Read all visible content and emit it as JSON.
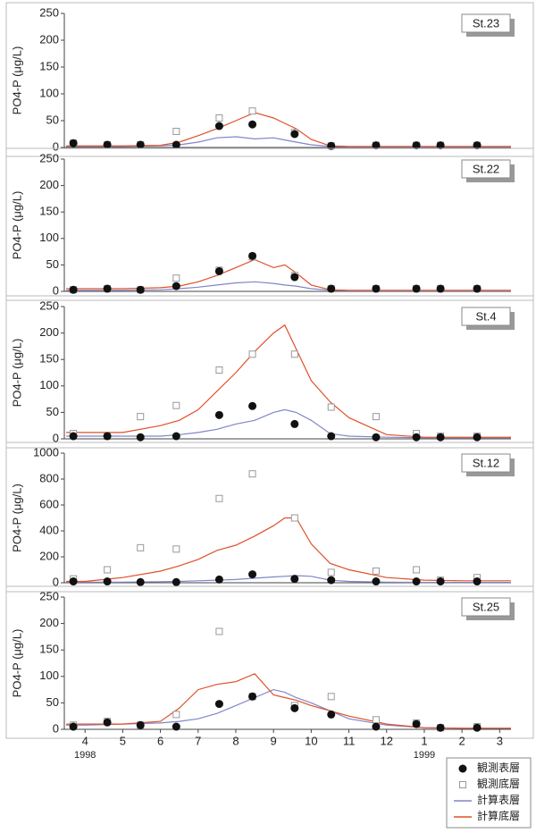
{
  "legend": [
    {
      "name": "観測表層",
      "color": "#111111",
      "marker": "circle"
    },
    {
      "name": "観測底層",
      "color": "#999999",
      "marker": "square"
    },
    {
      "name": "計算表層",
      "color": "#7f86c8",
      "marker": "line"
    },
    {
      "name": "計算底層",
      "color": "#e0502a",
      "marker": "line"
    }
  ],
  "chart_data": [
    {
      "type": "line",
      "label": "St.23",
      "ylabel": "PO4-P (μg/L)",
      "xlim": [
        3.45,
        15.3
      ],
      "ylim": [
        0,
        250
      ],
      "yticks": [
        0,
        50,
        100,
        150,
        200,
        250
      ],
      "obs_x": [
        3.69,
        4.59,
        5.47,
        6.42,
        7.56,
        8.44,
        9.56,
        10.53,
        11.72,
        12.79,
        13.43,
        14.4
      ],
      "observed_surface": [
        8,
        5,
        5,
        5,
        40,
        43,
        25,
        3,
        4,
        4,
        4,
        4
      ],
      "observed_bottom": [
        8,
        5,
        5,
        30,
        55,
        68,
        28,
        3,
        4,
        4,
        4,
        4
      ],
      "model_x": [
        3.5,
        4,
        5,
        6,
        6.5,
        7,
        7.5,
        8,
        8.5,
        9,
        9.3,
        9.6,
        10,
        10.5,
        11,
        12,
        13,
        14,
        15.3
      ],
      "model_surface": [
        2,
        2,
        2,
        3,
        5,
        10,
        18,
        20,
        16,
        18,
        14,
        10,
        5,
        2,
        1,
        1,
        1,
        1,
        1
      ],
      "model_bottom": [
        3,
        3,
        3,
        4,
        10,
        22,
        35,
        50,
        65,
        55,
        45,
        35,
        15,
        3,
        2,
        2,
        2,
        2,
        2
      ]
    },
    {
      "type": "line",
      "label": "St.22",
      "ylabel": "PO4-P (μg/L)",
      "xlim": [
        3.45,
        15.3
      ],
      "ylim": [
        0,
        250
      ],
      "yticks": [
        0,
        50,
        100,
        150,
        200,
        250
      ],
      "obs_x": [
        3.69,
        4.59,
        5.47,
        6.42,
        7.56,
        8.44,
        9.56,
        10.53,
        11.72,
        12.79,
        13.43,
        14.4
      ],
      "observed_surface": [
        3,
        5,
        3,
        10,
        38,
        67,
        27,
        5,
        5,
        5,
        5,
        5
      ],
      "observed_bottom": [
        3,
        5,
        3,
        25,
        40,
        65,
        30,
        5,
        5,
        5,
        5,
        5
      ],
      "model_x": [
        3.5,
        4,
        5,
        6,
        6.5,
        7,
        7.5,
        8,
        8.5,
        9,
        9.3,
        9.6,
        10,
        10.5,
        11,
        12,
        13,
        14,
        15.3
      ],
      "model_surface": [
        2,
        2,
        2,
        3,
        5,
        8,
        12,
        16,
        18,
        15,
        12,
        10,
        5,
        2,
        1,
        1,
        1,
        1,
        1
      ],
      "model_bottom": [
        5,
        5,
        5,
        7,
        10,
        18,
        30,
        45,
        60,
        45,
        50,
        35,
        12,
        3,
        2,
        2,
        2,
        2,
        2
      ]
    },
    {
      "type": "line",
      "label": "St.4",
      "ylabel": "PO4-P (μg/L)",
      "xlim": [
        3.45,
        15.3
      ],
      "ylim": [
        0,
        250
      ],
      "yticks": [
        0,
        50,
        100,
        150,
        200,
        250
      ],
      "obs_x": [
        3.69,
        4.59,
        5.47,
        6.42,
        7.56,
        8.44,
        9.56,
        10.53,
        11.72,
        12.79,
        13.43,
        14.4
      ],
      "observed_surface": [
        5,
        5,
        3,
        5,
        45,
        62,
        28,
        5,
        3,
        3,
        3,
        3
      ],
      "observed_bottom": [
        10,
        5,
        42,
        63,
        130,
        160,
        160,
        60,
        42,
        10,
        5,
        5
      ],
      "model_x": [
        3.5,
        4,
        5,
        6,
        6.5,
        7,
        7.5,
        8,
        8.5,
        9,
        9.3,
        9.6,
        10,
        10.5,
        11,
        12,
        13,
        14,
        15.3
      ],
      "model_surface": [
        5,
        5,
        5,
        5,
        8,
        12,
        18,
        28,
        35,
        50,
        55,
        50,
        35,
        10,
        5,
        3,
        2,
        2,
        2
      ],
      "model_bottom": [
        12,
        12,
        12,
        25,
        35,
        55,
        90,
        125,
        165,
        200,
        215,
        170,
        110,
        70,
        40,
        8,
        3,
        3,
        3
      ]
    },
    {
      "type": "line",
      "label": "St.12",
      "ylabel": "PO4-P (μg/L)",
      "xlim": [
        3.45,
        15.3
      ],
      "ylim": [
        0,
        1000
      ],
      "yticks": [
        0,
        200,
        400,
        600,
        800,
        1000
      ],
      "obs_x": [
        3.69,
        4.59,
        5.47,
        6.42,
        7.56,
        8.44,
        9.56,
        10.53,
        11.72,
        12.79,
        13.43,
        14.4
      ],
      "observed_surface": [
        10,
        10,
        5,
        5,
        25,
        65,
        30,
        20,
        10,
        10,
        10,
        10
      ],
      "observed_bottom": [
        30,
        100,
        270,
        260,
        650,
        840,
        500,
        80,
        90,
        100,
        20,
        40
      ],
      "model_x": [
        3.5,
        4,
        5,
        6,
        6.5,
        7,
        7.5,
        8,
        8.5,
        9,
        9.3,
        9.6,
        10,
        10.5,
        11,
        12,
        13,
        14,
        15.3
      ],
      "model_surface": [
        5,
        5,
        5,
        8,
        10,
        15,
        20,
        25,
        35,
        45,
        50,
        55,
        50,
        20,
        10,
        5,
        3,
        3,
        3
      ],
      "model_bottom": [
        10,
        10,
        40,
        90,
        130,
        180,
        250,
        290,
        360,
        440,
        500,
        500,
        300,
        150,
        100,
        40,
        20,
        15,
        15
      ]
    },
    {
      "type": "line",
      "label": "St.25",
      "ylabel": "PO4-P (μg/L)",
      "xlim": [
        3.45,
        15.3
      ],
      "ylim": [
        0,
        250
      ],
      "yticks": [
        0,
        50,
        100,
        150,
        200,
        250
      ],
      "xticks": [
        4,
        5,
        6,
        7,
        8,
        9,
        10,
        11,
        12,
        {
          "value": 13,
          "label": "1"
        },
        {
          "value": 14,
          "label": "2"
        },
        {
          "value": 15,
          "label": "3"
        }
      ],
      "year_labels": [
        {
          "value": 4,
          "label": "1998"
        },
        {
          "value": 13,
          "label": "1999"
        }
      ],
      "obs_x": [
        3.69,
        4.59,
        5.47,
        6.42,
        7.56,
        8.44,
        9.56,
        10.53,
        11.72,
        12.79,
        13.43,
        14.4
      ],
      "observed_surface": [
        5,
        13,
        8,
        5,
        48,
        62,
        40,
        28,
        5,
        10,
        3,
        3
      ],
      "observed_bottom": [
        8,
        15,
        8,
        28,
        185,
        62,
        45,
        62,
        18,
        12,
        3,
        5
      ],
      "model_x": [
        3.5,
        4,
        5,
        6,
        6.5,
        7,
        7.5,
        8,
        8.5,
        9,
        9.3,
        9.6,
        10,
        10.5,
        11,
        12,
        13,
        14,
        15.3
      ],
      "model_surface": [
        8,
        8,
        10,
        12,
        15,
        20,
        30,
        45,
        60,
        75,
        70,
        60,
        50,
        35,
        20,
        8,
        3,
        2,
        2
      ],
      "model_bottom": [
        10,
        10,
        10,
        15,
        40,
        75,
        85,
        90,
        105,
        65,
        60,
        55,
        45,
        35,
        25,
        10,
        3,
        2,
        2
      ]
    }
  ]
}
